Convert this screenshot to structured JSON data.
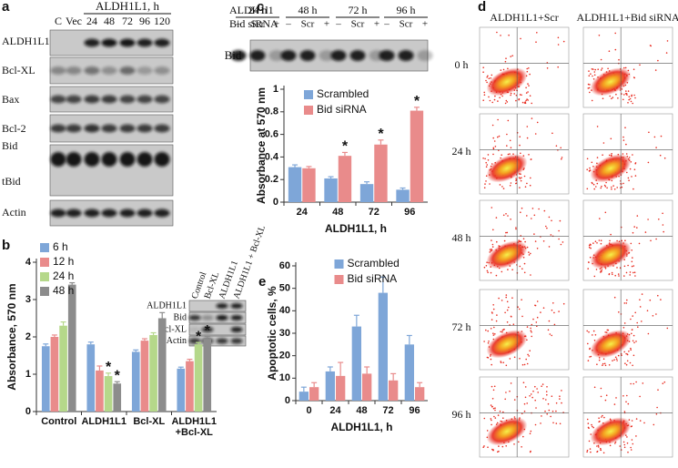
{
  "panel_labels": [
    "a",
    "b",
    "c",
    "d",
    "e"
  ],
  "blot_a": {
    "header": "ALDH1L1, h",
    "lanes": [
      "C",
      "Vec",
      "24",
      "48",
      "72",
      "96",
      "120"
    ],
    "rows": [
      "ALDH1L1",
      "Bcl-XL",
      "Bax",
      "Bcl-2",
      "Bid",
      "tBid",
      "Actin"
    ]
  },
  "blot_b": {
    "columns": [
      "Control",
      "Bcl-XL",
      "ALDH1L1",
      "ALDH1L1 + Bcl-XL"
    ],
    "rows": [
      "ALDH1L1",
      "Bid",
      "Bcl-XL",
      "Actin"
    ]
  },
  "blot_c": {
    "header": "ALDH1l1",
    "times": [
      "24 h",
      "48 h",
      "72 h",
      "96 h"
    ],
    "sirna_label": "Bid siRNA",
    "lanes": [
      "–",
      "Scr",
      "+"
    ],
    "row": "Bid"
  },
  "flow_d": {
    "columns": [
      "ALDH1L1+Scr",
      "ALDH1L1+Bid siRNA"
    ],
    "rows": [
      "0 h",
      "24 h",
      "48 h",
      "72 h",
      "96 h"
    ]
  },
  "chart_data": [
    {
      "type": "bar",
      "y_label": "Absorbance, 570 nm",
      "categories": [
        "Control",
        "ALDH1L1",
        "Bcl-XL",
        "ALDH1L1 +Bcl-XL"
      ],
      "series": [
        {
          "name": "6 h",
          "color": "#7ea6d8",
          "values": [
            1.75,
            1.8,
            1.6,
            1.15
          ],
          "errors": [
            0.06,
            0.06,
            0.05,
            0.04
          ]
        },
        {
          "name": "12 h",
          "color": "#e98b8b",
          "values": [
            2.0,
            1.1,
            1.9,
            1.35
          ],
          "errors": [
            0.05,
            0.12,
            0.05,
            0.05
          ]
        },
        {
          "name": "24 h",
          "color": "#b5d88a",
          "values": [
            2.3,
            0.95,
            2.05,
            1.8
          ],
          "errors": [
            0.1,
            0.08,
            0.06,
            0.05
          ]
        },
        {
          "name": "48 h",
          "color": "#8c8c8c",
          "values": [
            3.4,
            0.75,
            2.5,
            1.95
          ],
          "errors": [
            0.05,
            0.05,
            0.15,
            0.06
          ]
        }
      ],
      "annotations": [
        {
          "text": "*",
          "category": 1,
          "series": 2
        },
        {
          "text": "*",
          "category": 1,
          "series": 3
        },
        {
          "text": "*",
          "category": 3,
          "series": 2
        },
        {
          "text": "*",
          "category": 3,
          "series": 3
        }
      ],
      "ylim": [
        0,
        4
      ],
      "yticks": [
        0,
        1,
        2,
        3,
        4
      ],
      "legend": "upper left"
    },
    {
      "type": "bar",
      "x_label": "ALDH1L1, h",
      "y_label": "Absorbance at 570 nm",
      "categories": [
        "24",
        "48",
        "72",
        "96"
      ],
      "series": [
        {
          "name": "Scrambled",
          "color": "#7ea6d8",
          "values": [
            0.31,
            0.21,
            0.16,
            0.11
          ],
          "errors": [
            0.02,
            0.015,
            0.02,
            0.015
          ]
        },
        {
          "name": "Bid siRNA",
          "color": "#e98b8b",
          "values": [
            0.3,
            0.41,
            0.51,
            0.81
          ],
          "errors": [
            0.015,
            0.03,
            0.04,
            0.03
          ]
        }
      ],
      "annotations": [
        {
          "text": "*",
          "category": 1,
          "series": 1
        },
        {
          "text": "*",
          "category": 2,
          "series": 1
        },
        {
          "text": "*",
          "category": 3,
          "series": 1
        }
      ],
      "ylim": [
        0,
        1
      ],
      "yticks": [
        0,
        0.2,
        0.4,
        0.6,
        0.8,
        1
      ],
      "legend": "upper left"
    },
    {
      "type": "bar",
      "x_label": "ALDH1L1, h",
      "y_label": "Apoptotic cells, %",
      "categories": [
        "0",
        "24",
        "48",
        "72",
        "96"
      ],
      "series": [
        {
          "name": "Scrambled",
          "color": "#7ea6d8",
          "values": [
            4,
            13,
            33,
            48,
            25
          ],
          "errors": [
            2,
            2,
            5,
            7,
            4
          ]
        },
        {
          "name": "Bid siRNA",
          "color": "#e98b8b",
          "values": [
            6,
            11,
            12,
            9,
            6
          ],
          "errors": [
            2,
            6,
            3,
            3,
            2
          ]
        }
      ],
      "annotations": [],
      "ylim": [
        0,
        60
      ],
      "yticks": [
        0,
        10,
        20,
        30,
        40,
        50,
        60
      ],
      "legend": "upper center"
    }
  ]
}
